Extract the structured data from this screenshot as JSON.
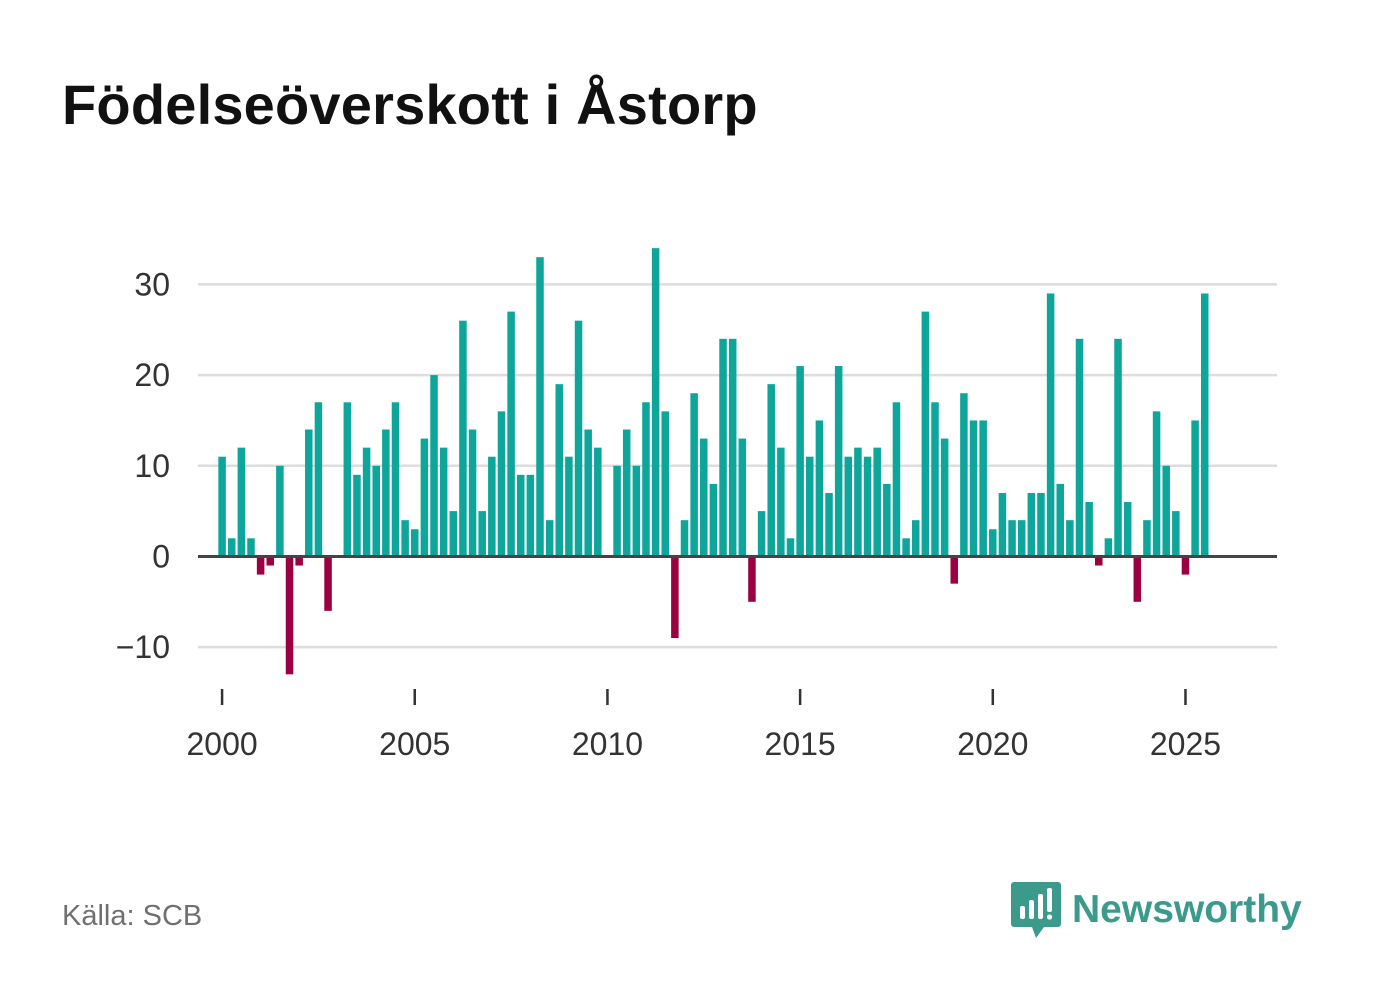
{
  "chart_data": {
    "type": "bar",
    "title": "Födelseöverskott i Åstorp",
    "source": "Källa: SCB",
    "brand": "Newsworthy",
    "xlabel": "",
    "ylabel": "",
    "ylim": [
      -15.5,
      36
    ],
    "y_ticks": [
      30,
      20,
      10,
      0,
      -10
    ],
    "y_tick_labels": [
      "30",
      "20",
      "10",
      "0",
      "−10"
    ],
    "x_ticks": [
      2000,
      2005,
      2010,
      2015,
      2020,
      2025
    ],
    "x_tick_labels": [
      "2000",
      "2005",
      "2010",
      "2015",
      "2020",
      "2025"
    ],
    "x_range": [
      1999.375,
      2027.375
    ],
    "x_start": 2000,
    "x_step": 0.25,
    "grid": true,
    "positive_color": "#0ea59a",
    "negative_color": "#9b0040",
    "values": [
      11,
      2,
      12,
      2,
      -2,
      -1,
      10,
      -13,
      -1,
      14,
      17,
      -6,
      0,
      17,
      9,
      12,
      10,
      14,
      17,
      4,
      3,
      13,
      20,
      12,
      5,
      26,
      14,
      5,
      11,
      16,
      27,
      9,
      9,
      33,
      4,
      19,
      11,
      26,
      14,
      12,
      0,
      10,
      14,
      10,
      17,
      34,
      16,
      -9,
      4,
      18,
      13,
      8,
      24,
      24,
      13,
      -5,
      5,
      19,
      12,
      2,
      21,
      11,
      15,
      7,
      21,
      11,
      12,
      11,
      12,
      8,
      17,
      2,
      4,
      27,
      17,
      13,
      -3,
      18,
      15,
      15,
      3,
      7,
      4,
      4,
      7,
      7,
      29,
      8,
      4,
      24,
      6,
      -1,
      2,
      24,
      6,
      -5,
      4,
      16,
      10,
      5,
      -2,
      15,
      29
    ]
  }
}
